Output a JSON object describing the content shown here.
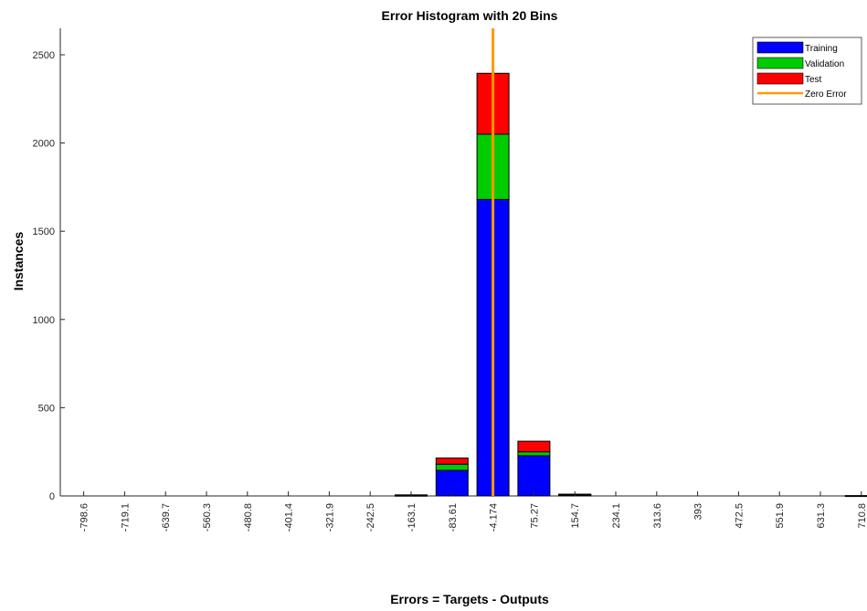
{
  "chart_data": {
    "type": "bar",
    "stacked": true,
    "title": "Error Histogram with 20 Bins",
    "xlabel": "Errors = Targets - Outputs",
    "ylabel": "Instances",
    "categories": [
      "-798.6",
      "-719.1",
      "-639.7",
      "-560.3",
      "-480.8",
      "-401.4",
      "-321.9",
      "-242.5",
      "-163.1",
      "-83.61",
      "-4.174",
      "75.27",
      "154.7",
      "234.1",
      "313.6",
      "393",
      "472.5",
      "551.9",
      "631.3",
      "710.8"
    ],
    "series": [
      {
        "name": "Training",
        "color": "#0000ff",
        "values": [
          0,
          0,
          0,
          0,
          0,
          0,
          0,
          0,
          4,
          145,
          1680,
          228,
          7,
          0,
          0,
          0,
          0,
          0,
          0,
          2
        ]
      },
      {
        "name": "Validation",
        "color": "#00cc00",
        "values": [
          0,
          0,
          0,
          0,
          0,
          0,
          0,
          0,
          1,
          35,
          370,
          22,
          1,
          0,
          0,
          0,
          0,
          0,
          0,
          0
        ]
      },
      {
        "name": "Test",
        "color": "#ff0000",
        "values": [
          0,
          0,
          0,
          0,
          0,
          0,
          0,
          0,
          1,
          35,
          345,
          60,
          2,
          0,
          0,
          0,
          0,
          0,
          0,
          0
        ]
      }
    ],
    "zero_error": {
      "name": "Zero Error",
      "x_bin": 10,
      "color": "#ff9900"
    },
    "ylim": [
      0,
      2650
    ],
    "yticks": [
      0,
      500,
      1000,
      1500,
      2000,
      2500
    ],
    "legend": "top-right",
    "grid": false
  }
}
